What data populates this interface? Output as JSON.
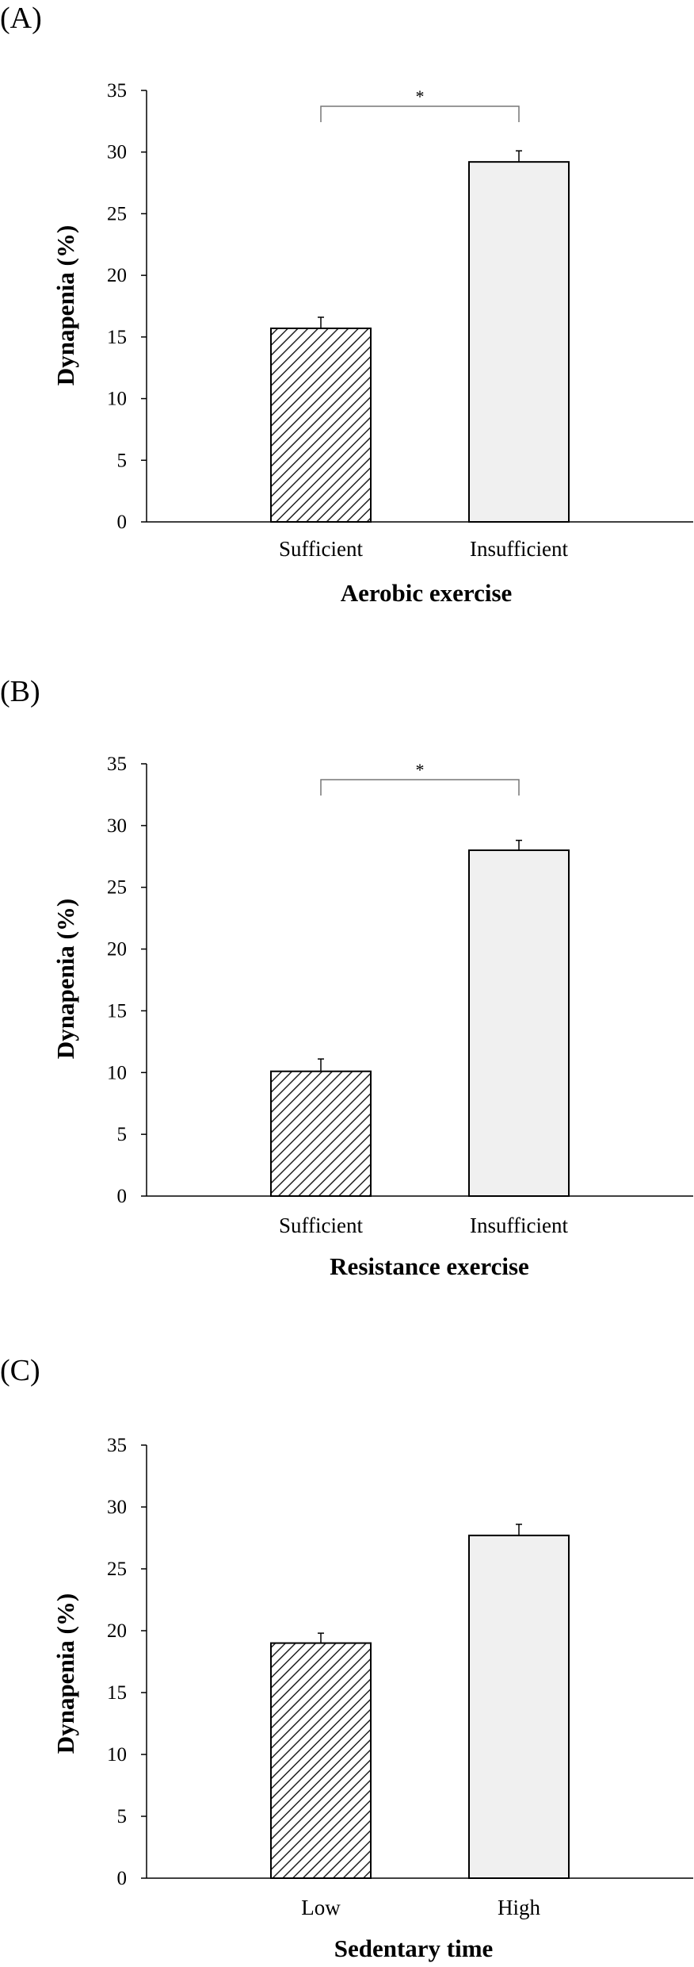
{
  "chart_data": [
    {
      "type": "bar",
      "panel_label": "(A)",
      "xlabel": "Aerobic exercise",
      "ylabel": "Dynapenia (%)",
      "ylim": [
        0,
        35
      ],
      "yticks": [
        0,
        5,
        10,
        15,
        20,
        25,
        30,
        35
      ],
      "categories": [
        "Sufficient",
        "Insufficient"
      ],
      "values": [
        15.7,
        29.2
      ],
      "errors": [
        0.9,
        0.9
      ],
      "fills": [
        "hatched",
        "#f0f0f0"
      ],
      "significance": "*"
    },
    {
      "type": "bar",
      "panel_label": "(B)",
      "xlabel": "Resistance exercise",
      "ylabel": "Dynapenia (%)",
      "ylim": [
        0,
        35
      ],
      "yticks": [
        0,
        5,
        10,
        15,
        20,
        25,
        30,
        35
      ],
      "categories": [
        "Sufficient",
        "Insufficient"
      ],
      "values": [
        10.1,
        28.0
      ],
      "errors": [
        1.0,
        0.8
      ],
      "fills": [
        "hatched",
        "#f0f0f0"
      ],
      "significance": "*"
    },
    {
      "type": "bar",
      "panel_label": "(C)",
      "xlabel": "Sedentary time",
      "ylabel": "Dynapenia (%)",
      "ylim": [
        0,
        35
      ],
      "yticks": [
        0,
        5,
        10,
        15,
        20,
        25,
        30,
        35
      ],
      "categories": [
        "Low",
        "High"
      ],
      "values": [
        19.0,
        27.7
      ],
      "errors": [
        0.8,
        0.9
      ],
      "fills": [
        "hatched",
        "#f0f0f0"
      ],
      "significance": ""
    }
  ]
}
